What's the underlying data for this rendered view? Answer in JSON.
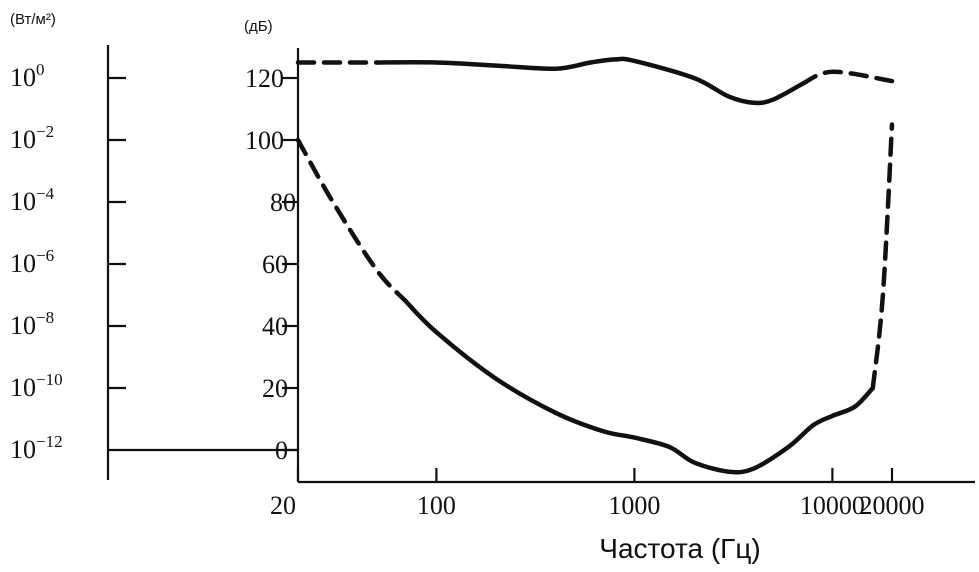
{
  "chart_data": {
    "type": "line",
    "x_axis": {
      "label": "Частота (Гц)",
      "scale": "log",
      "ticks": [
        "20",
        "100",
        "1000",
        "10000",
        "20000"
      ]
    },
    "y_axis_db": {
      "unit": "(дБ)",
      "ticks": [
        "0",
        "20",
        "40",
        "60",
        "80",
        "100",
        "120"
      ],
      "range": [
        -10,
        130
      ]
    },
    "y_axis_intensity": {
      "unit": "(Вт/м²)",
      "ticks": [
        {
          "base": "10",
          "exp": "0"
        },
        {
          "base": "10",
          "exp": "−2"
        },
        {
          "base": "10",
          "exp": "−4"
        },
        {
          "base": "10",
          "exp": "−6"
        },
        {
          "base": "10",
          "exp": "−8"
        },
        {
          "base": "10",
          "exp": "−10"
        },
        {
          "base": "10",
          "exp": "−12"
        }
      ]
    },
    "series": [
      {
        "points": [
          [
            20,
            125
          ],
          [
            50,
            125
          ],
          [
            100,
            125
          ],
          [
            200,
            124
          ],
          [
            400,
            123
          ],
          [
            600,
            125
          ],
          [
            800,
            126
          ],
          [
            1000,
            125.5
          ],
          [
            2000,
            120
          ],
          [
            3000,
            114
          ],
          [
            4000,
            112
          ],
          [
            5000,
            113
          ],
          [
            7000,
            118
          ],
          [
            10000,
            122
          ],
          [
            20000,
            119
          ]
        ],
        "solid_range": [
          50,
          7000
        ]
      },
      {
        "points": [
          [
            20,
            100
          ],
          [
            30,
            80
          ],
          [
            50,
            58
          ],
          [
            70,
            48
          ],
          [
            100,
            38
          ],
          [
            200,
            23
          ],
          [
            400,
            12
          ],
          [
            700,
            6
          ],
          [
            1000,
            4
          ],
          [
            1500,
            1
          ],
          [
            2000,
            -4
          ],
          [
            3000,
            -7
          ],
          [
            4000,
            -6
          ],
          [
            6000,
            1
          ],
          [
            8000,
            8
          ],
          [
            10000,
            11
          ],
          [
            13000,
            14
          ],
          [
            16000,
            20
          ],
          [
            18000,
            50
          ],
          [
            20000,
            105
          ]
        ],
        "solid_range": [
          70,
          16000
        ]
      }
    ]
  }
}
